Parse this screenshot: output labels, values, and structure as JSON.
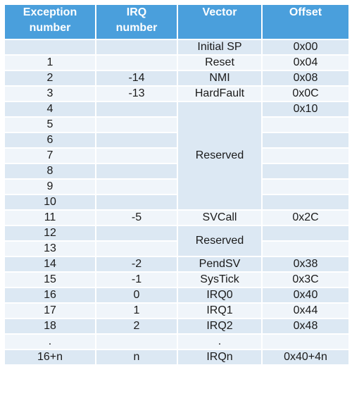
{
  "headers": {
    "exception": "Exception\nnumber",
    "irq": "IRQ\nnumber",
    "vector": "Vector",
    "offset": "Offset"
  },
  "rows": [
    {
      "exception": "",
      "irq": "",
      "vector": "Initial SP",
      "offset": "0x00"
    },
    {
      "exception": "1",
      "irq": "",
      "vector": "Reset",
      "offset": "0x04"
    },
    {
      "exception": "2",
      "irq": "-14",
      "vector": "NMI",
      "offset": "0x08"
    },
    {
      "exception": "3",
      "irq": "-13",
      "vector": "HardFault",
      "offset": "0x0C"
    },
    {
      "exception": "4",
      "irq": "",
      "vector": "Reserved",
      "offset": "0x10"
    },
    {
      "exception": "5",
      "irq": "",
      "vector": "",
      "offset": ""
    },
    {
      "exception": "6",
      "irq": "",
      "vector": "",
      "offset": ""
    },
    {
      "exception": "7",
      "irq": "",
      "vector": "",
      "offset": ""
    },
    {
      "exception": "8",
      "irq": "",
      "vector": "",
      "offset": ""
    },
    {
      "exception": "9",
      "irq": "",
      "vector": "",
      "offset": ""
    },
    {
      "exception": "10",
      "irq": "",
      "vector": "",
      "offset": ""
    },
    {
      "exception": "11",
      "irq": "-5",
      "vector": "SVCall",
      "offset": "0x2C"
    },
    {
      "exception": "12",
      "irq": "",
      "vector": "Reserved",
      "offset": ""
    },
    {
      "exception": "13",
      "irq": "",
      "vector": "",
      "offset": ""
    },
    {
      "exception": "14",
      "irq": "-2",
      "vector": "PendSV",
      "offset": "0x38"
    },
    {
      "exception": "15",
      "irq": "-1",
      "vector": "SysTick",
      "offset": "0x3C"
    },
    {
      "exception": "16",
      "irq": "0",
      "vector": "IRQ0",
      "offset": "0x40"
    },
    {
      "exception": "17",
      "irq": "1",
      "vector": "IRQ1",
      "offset": "0x44"
    },
    {
      "exception": "18",
      "irq": "2",
      "vector": "IRQ2",
      "offset": "0x48"
    },
    {
      "exception": ".",
      "irq": "",
      "vector": ".",
      "offset": ""
    },
    {
      "exception": "16+n",
      "irq": "n",
      "vector": "IRQn",
      "offset": "0x40+4n"
    }
  ],
  "colors": {
    "header_bg": "#4a9fdc",
    "row_odd": "#dce8f3",
    "row_even": "#f0f5fa"
  }
}
